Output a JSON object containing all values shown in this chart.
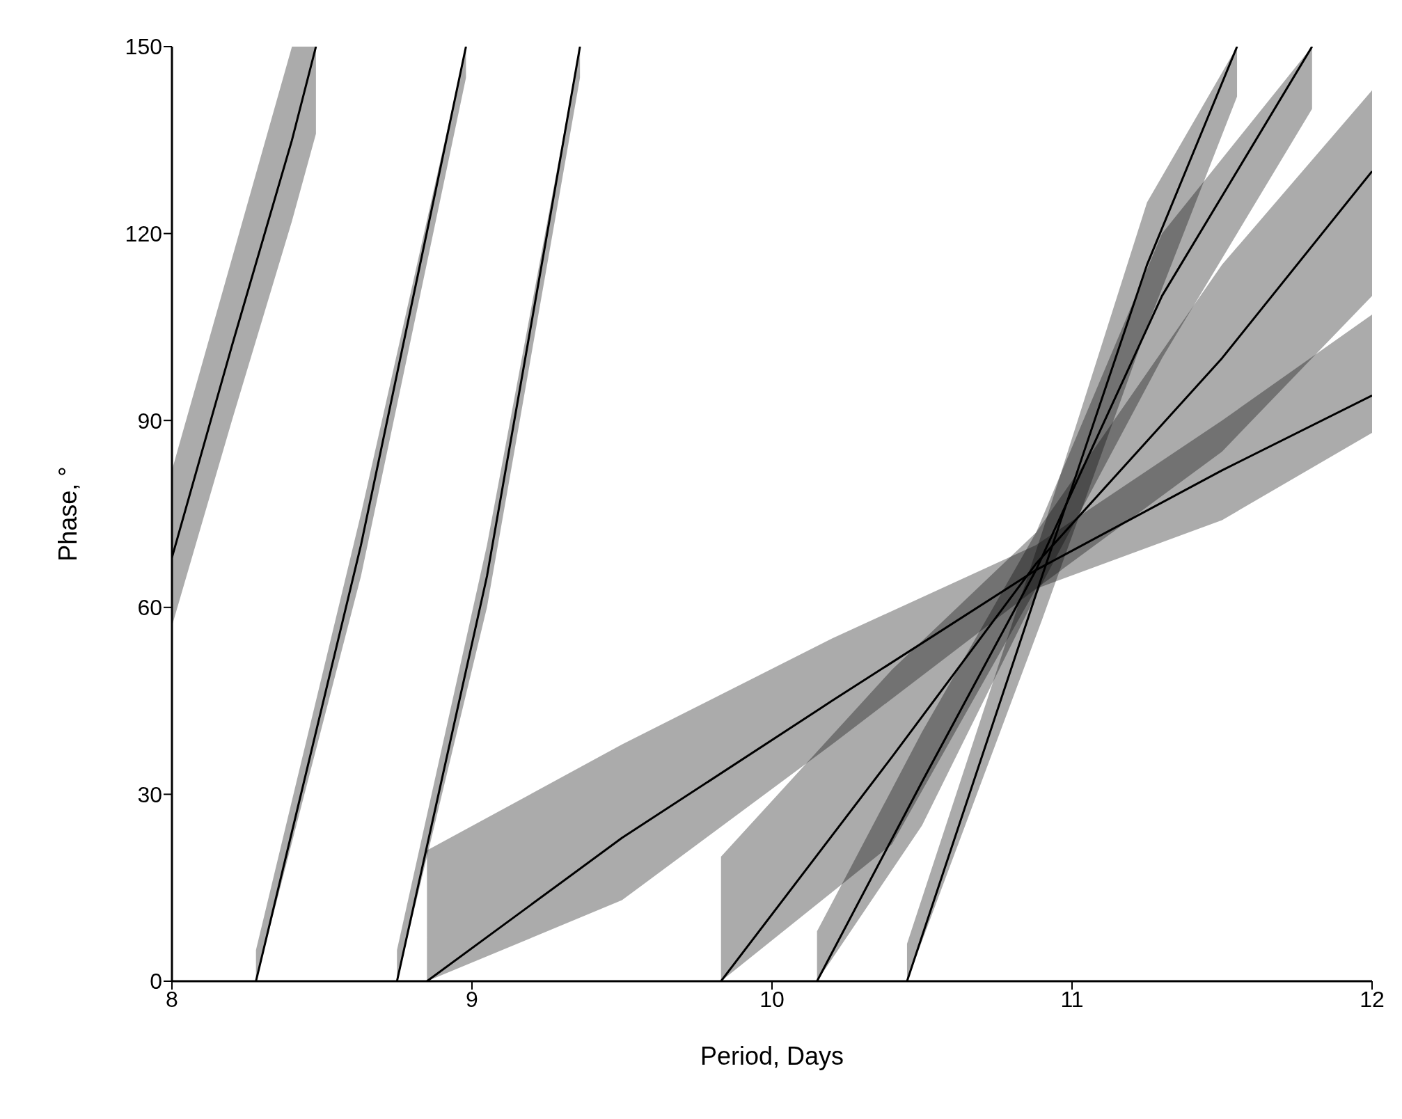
{
  "chart_data": {
    "type": "line",
    "xlabel": "Period, Days",
    "ylabel": "Phase, °",
    "xlim": [
      8,
      12
    ],
    "xticks": [
      8,
      9,
      10,
      11,
      12
    ],
    "ylim": [
      0,
      150
    ],
    "yticks": [
      0,
      30,
      60,
      90,
      120,
      150
    ],
    "grid": false,
    "legend": false,
    "marker": "none",
    "line_style": "solid",
    "series": [
      {
        "color": "#000000",
        "x": [
          8,
          8.2,
          8.4,
          8.48
        ],
        "values": [
          68,
          102,
          135,
          150
        ],
        "lower": [
          57,
          90,
          122,
          136
        ],
        "upper": [
          82,
          116,
          150,
          150
        ]
      },
      {
        "color": "#000000",
        "x": [
          8.28,
          8.63,
          8.98
        ],
        "values": [
          0,
          70,
          150
        ],
        "lower": [
          0,
          65,
          145
        ],
        "upper": [
          5,
          75,
          150
        ]
      },
      {
        "color": "#000000",
        "x": [
          8.75,
          9.05,
          9.36
        ],
        "values": [
          0,
          65,
          150
        ],
        "lower": [
          0,
          60,
          145
        ],
        "upper": [
          5,
          70,
          150
        ]
      },
      {
        "color": "#000000",
        "x": [
          8.85,
          9.5,
          10.2,
          10.88,
          11.5,
          12
        ],
        "values": [
          0,
          23,
          45,
          66,
          82,
          94
        ],
        "lower": [
          0,
          13,
          38,
          63,
          74,
          88
        ],
        "upper": [
          21,
          38,
          55,
          70,
          90,
          107
        ]
      },
      {
        "color": "#000000",
        "x": [
          9.83,
          10.4,
          10.88,
          11.5,
          12
        ],
        "values": [
          0,
          36,
          67,
          100,
          130
        ],
        "lower": [
          0,
          22,
          63,
          85,
          110
        ],
        "upper": [
          20,
          50,
          72,
          115,
          143
        ]
      },
      {
        "color": "#000000",
        "x": [
          10.15,
          10.5,
          10.88,
          11.3,
          11.8
        ],
        "values": [
          0,
          32,
          66,
          110,
          150
        ],
        "lower": [
          0,
          25,
          62,
          100,
          140
        ],
        "upper": [
          8,
          40,
          72,
          120,
          150
        ]
      },
      {
        "color": "#000000",
        "x": [
          10.45,
          10.9,
          11.25,
          11.55
        ],
        "values": [
          0,
          65,
          115,
          150
        ],
        "lower": [
          0,
          58,
          105,
          142
        ],
        "upper": [
          6,
          72,
          125,
          150
        ]
      }
    ]
  }
}
